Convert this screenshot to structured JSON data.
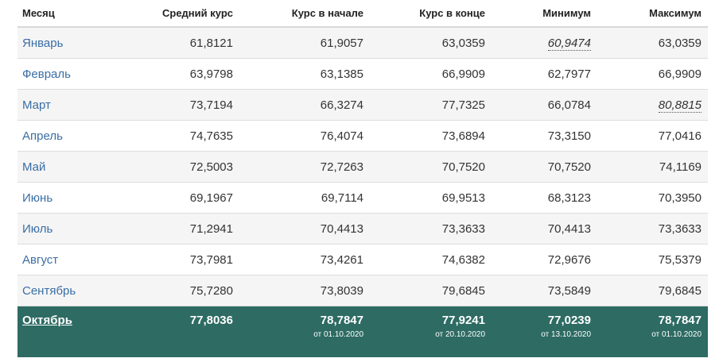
{
  "headers": [
    "Месяц",
    "Средний курс",
    "Курс в начале",
    "Курс в конце",
    "Минимум",
    "Максимум"
  ],
  "rows": [
    {
      "month": "Январь",
      "avg": "61,8121",
      "start": "61,9057",
      "end": "63,0359",
      "min": "60,9474",
      "max": "63,0359"
    },
    {
      "month": "Февраль",
      "avg": "63,9798",
      "start": "63,1385",
      "end": "66,9909",
      "min": "62,7977",
      "max": "66,9909"
    },
    {
      "month": "Март",
      "avg": "73,7194",
      "start": "66,3274",
      "end": "77,7325",
      "min": "66,0784",
      "max": "80,8815"
    },
    {
      "month": "Апрель",
      "avg": "74,7635",
      "start": "76,4074",
      "end": "73,6894",
      "min": "73,3150",
      "max": "77,0416"
    },
    {
      "month": "Май",
      "avg": "72,5003",
      "start": "72,7263",
      "end": "70,7520",
      "min": "70,7520",
      "max": "74,1169"
    },
    {
      "month": "Июнь",
      "avg": "69,1967",
      "start": "69,7114",
      "end": "69,9513",
      "min": "68,3123",
      "max": "70,3950"
    },
    {
      "month": "Июль",
      "avg": "71,2941",
      "start": "70,4413",
      "end": "73,3633",
      "min": "70,4413",
      "max": "73,3633"
    },
    {
      "month": "Август",
      "avg": "73,7981",
      "start": "73,4261",
      "end": "74,6382",
      "min": "72,9676",
      "max": "75,5379"
    },
    {
      "month": "Сентябрь",
      "avg": "75,7280",
      "start": "73,8039",
      "end": "79,6845",
      "min": "73,5849",
      "max": "79,6845"
    }
  ],
  "current": {
    "month": "Октябрь",
    "avg": "77,8036",
    "start": "78,7847",
    "start_note": "от 01.10.2020",
    "end": "77,9241",
    "end_note": "от 20.10.2020",
    "min": "77,0239",
    "min_note": "от 13.10.2020",
    "max": "78,7847",
    "max_note": "от 01.10.2020"
  },
  "colors": {
    "current_bg": "#2d6b63",
    "link": "#3a6ea5",
    "stripe": "#f5f5f5"
  }
}
